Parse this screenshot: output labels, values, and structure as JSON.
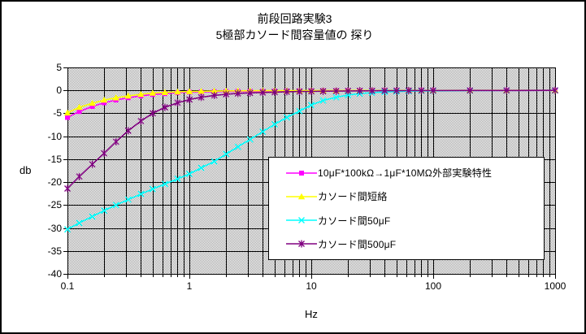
{
  "chart_data": {
    "type": "line",
    "title": "前段回路実験3",
    "subtitle": "5極部カソード間容量値の 探り",
    "xlabel": "Hz",
    "ylabel": "db",
    "x_scale": "log",
    "xlim": [
      0.1,
      1000
    ],
    "ylim": [
      -40,
      5
    ],
    "x_ticks": [
      0.1,
      1,
      10,
      100,
      1000
    ],
    "x_tick_labels": [
      "0.1",
      "1",
      "10",
      "100",
      "1000"
    ],
    "y_ticks": [
      5,
      0,
      -5,
      -10,
      -15,
      -20,
      -25,
      -30,
      -35,
      -40
    ],
    "grid": "all log minor and major lines, black, on gray dithered plot background",
    "legend_position": "inside lower-right of plot area",
    "plot_bg_color": "#d0d0d0",
    "gridline_color": "#000000",
    "x": [
      0.1,
      0.125,
      0.16,
      0.2,
      0.25,
      0.315,
      0.4,
      0.5,
      0.63,
      0.8,
      1,
      1.25,
      1.6,
      2,
      2.5,
      3.15,
      4,
      5,
      6.3,
      8,
      10,
      12.5,
      16,
      20,
      25,
      31.5,
      40,
      50,
      63,
      80,
      100,
      200,
      400,
      1000
    ],
    "series": [
      {
        "name": "10μF*100kΩ→1μF*10MΩ外部実験特性",
        "color": "#FF00FF",
        "marker": "square",
        "values": [
          -5.9,
          -4.6,
          -3.5,
          -2.7,
          -2.1,
          -1.6,
          -1.2,
          -0.9,
          -0.7,
          -0.5,
          -0.4,
          -0.35,
          -0.3,
          -0.25,
          -0.22,
          -0.2,
          -0.18,
          -0.15,
          -0.13,
          -0.12,
          -0.1,
          -0.09,
          -0.08,
          -0.07,
          -0.06,
          -0.05,
          -0.05,
          -0.04,
          -0.04,
          -0.03,
          -0.03,
          -0.02,
          -0.01,
          0
        ]
      },
      {
        "name": "カソード間短絡",
        "color": "#FFFF00",
        "marker": "triangle",
        "values": [
          -4.9,
          -3.7,
          -2.8,
          -2.1,
          -1.6,
          -1.2,
          -0.85,
          -0.6,
          -0.45,
          -0.32,
          -0.25,
          -0.2,
          -0.15,
          -0.12,
          -0.1,
          -0.08,
          -0.07,
          -0.06,
          -0.05,
          -0.05,
          -0.04,
          -0.04,
          -0.03,
          -0.03,
          -0.02,
          -0.02,
          -0.02,
          -0.01,
          -0.01,
          -0.01,
          -0.01,
          0,
          0,
          0
        ]
      },
      {
        "name": "カソード間50μF",
        "color": "#00FFFF",
        "marker": "x",
        "values": [
          -30.3,
          -28.9,
          -27.5,
          -26.2,
          -25.0,
          -23.8,
          -22.6,
          -21.5,
          -20.4,
          -19.3,
          -18.2,
          -16.9,
          -15.5,
          -13.9,
          -12.3,
          -10.7,
          -9.0,
          -7.4,
          -5.9,
          -4.5,
          -3.2,
          -2.2,
          -1.5,
          -1.0,
          -0.7,
          -0.5,
          -0.35,
          -0.25,
          -0.18,
          -0.12,
          -0.1,
          -0.05,
          -0.02,
          0
        ]
      },
      {
        "name": "カソード間500μF",
        "color": "#800080",
        "marker": "asterisk",
        "values": [
          -21.4,
          -18.8,
          -16.1,
          -13.7,
          -11.2,
          -8.8,
          -6.7,
          -5.0,
          -3.7,
          -2.7,
          -2.0,
          -1.5,
          -1.1,
          -0.85,
          -0.65,
          -0.55,
          -0.45,
          -0.38,
          -0.3,
          -0.25,
          -0.22,
          -0.18,
          -0.15,
          -0.12,
          -0.1,
          -0.09,
          -0.07,
          -0.06,
          -0.05,
          -0.04,
          -0.04,
          -0.02,
          -0.01,
          0
        ]
      }
    ]
  }
}
